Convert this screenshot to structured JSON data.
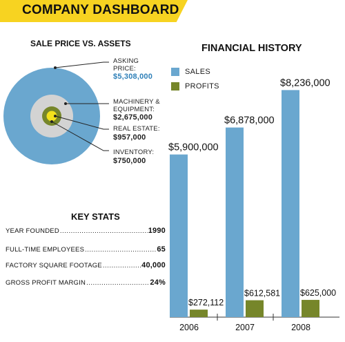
{
  "header": {
    "title": "COMPANY DASHBOARD"
  },
  "sale_price": {
    "title": "SALE PRICE VS. ASSETS",
    "rings": [
      {
        "label_lines": [
          "ASKING",
          "PRICE:"
        ],
        "value": "$5,308,000",
        "amount": 5308000,
        "color": "#6aa7cf"
      },
      {
        "label_lines": [
          "MACHINERY &",
          "EQUIPMENT:"
        ],
        "value": "$2,675,000",
        "amount": 2675000,
        "color": "#d3d3d3"
      },
      {
        "label_lines": [
          "REAL ESTATE:"
        ],
        "value": "$957,000",
        "amount": 957000,
        "color": "#76862a"
      },
      {
        "label_lines": [
          "INVENTORY:"
        ],
        "value": "$750,000",
        "amount": 750000,
        "color": "#f2e11c"
      }
    ]
  },
  "key_stats": {
    "title": "KEY STATS",
    "items": [
      {
        "label": "YEAR FOUNDED",
        "value": "1990"
      },
      {
        "label": "FULL-TIME EMPLOYEES",
        "value": "65"
      },
      {
        "label": "FACTORY SQUARE FOOTAGE",
        "value": "40,000"
      },
      {
        "label": "GROSS PROFIT MARGIN",
        "value": "24%"
      }
    ]
  },
  "chart_data": {
    "type": "bar",
    "title": "FINANCIAL HISTORY",
    "categories": [
      "2006",
      "2007",
      "2008"
    ],
    "series": [
      {
        "name": "SALES",
        "values": [
          5900000,
          6878000,
          8236000
        ],
        "labels": [
          "$5,900,000",
          "$6,878,000",
          "$8,236,000"
        ],
        "color": "#6aa7cf"
      },
      {
        "name": "PROFITS",
        "values": [
          272112,
          612581,
          625000
        ],
        "labels": [
          "$272,112",
          "$612,581",
          "$625,000"
        ],
        "color": "#76862a"
      }
    ],
    "ylim": [
      0,
      10000000
    ],
    "grid": false,
    "legend_position": "top-left"
  }
}
